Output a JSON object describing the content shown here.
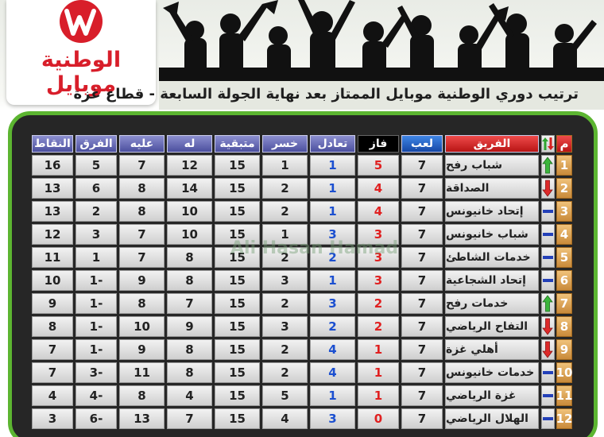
{
  "logo": {
    "text": "الوطنية موبايل"
  },
  "title": "ترتيب دوري الوطنية موبايل الممتاز بعد نهاية الجولة السابعة - قطاع غزة",
  "watermark": "Ali Hasan Hamad",
  "table": {
    "headers": [
      "م",
      "الفريق",
      "لعب",
      "فاز",
      "تعادل",
      "خسر",
      "متبقية",
      "له",
      "عليه",
      "الفرق",
      "النقاط"
    ],
    "rows": [
      [
        1,
        "شباب رفح",
        7,
        5,
        1,
        1,
        15,
        12,
        7,
        5,
        16
      ],
      [
        2,
        "الصداقة",
        7,
        4,
        1,
        2,
        15,
        14,
        8,
        6,
        13
      ],
      [
        3,
        "إتحاد خانيونس",
        7,
        4,
        1,
        2,
        15,
        10,
        8,
        2,
        13
      ],
      [
        4,
        "شباب خانيونس",
        7,
        3,
        3,
        1,
        15,
        10,
        7,
        3,
        12
      ],
      [
        5,
        "خدمات الشاطئ",
        7,
        3,
        2,
        2,
        15,
        8,
        7,
        1,
        11
      ],
      [
        6,
        "إتحاد الشجاعية",
        7,
        3,
        1,
        3,
        15,
        8,
        9,
        "1-",
        10
      ],
      [
        7,
        "خدمات رفح",
        7,
        2,
        3,
        2,
        15,
        7,
        8,
        "1-",
        9
      ],
      [
        8,
        "التفاح الرياضي",
        7,
        2,
        2,
        3,
        15,
        9,
        10,
        "1-",
        8
      ],
      [
        9,
        "أهلي غزة",
        7,
        1,
        4,
        2,
        15,
        8,
        9,
        "1-",
        7
      ],
      [
        10,
        "خدمات خانيونس",
        7,
        1,
        4,
        2,
        15,
        8,
        11,
        "3-",
        7
      ],
      [
        11,
        "غزة الرياضي",
        7,
        1,
        1,
        5,
        15,
        4,
        8,
        "4-",
        4
      ],
      [
        12,
        "الهلال الرياضي",
        7,
        0,
        3,
        4,
        15,
        7,
        13,
        "6-",
        3
      ]
    ],
    "trends": [
      "up",
      "down",
      "same",
      "same",
      "same",
      "same",
      "up",
      "down",
      "down",
      "same",
      "same",
      "same"
    ]
  }
}
